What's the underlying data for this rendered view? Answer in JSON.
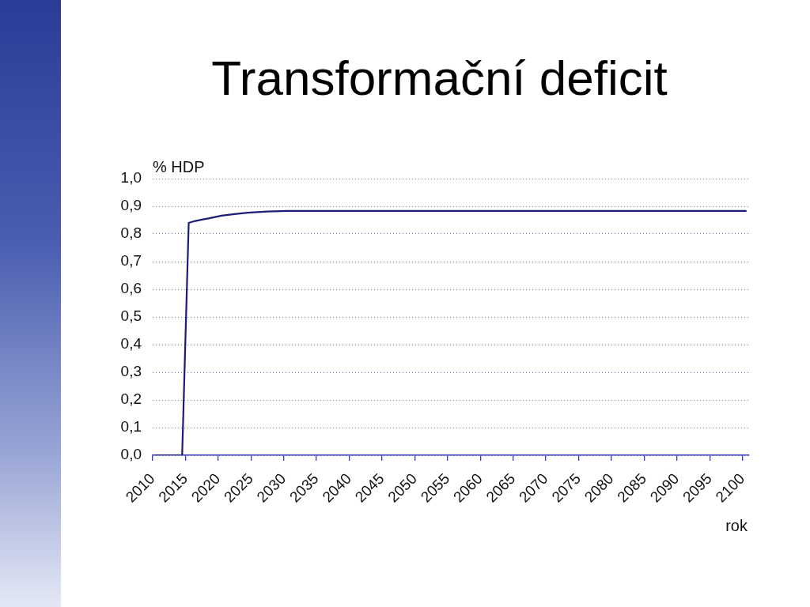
{
  "chart_data": {
    "type": "line",
    "title": "Transformační deficit",
    "xlabel": "rok",
    "ylabel": "% HDP",
    "x": [
      2010.5,
      2014.5,
      2015.5,
      2016.5,
      2017.5,
      2018.5,
      2020.5,
      2022.5,
      2024.5,
      2027.5,
      2030.5,
      2100.5
    ],
    "values": [
      0,
      0,
      0.84,
      0.847,
      0.852,
      0.856,
      0.866,
      0.872,
      0.877,
      0.881,
      0.883,
      0.883
    ],
    "color": "#1c1c78",
    "marker": "none",
    "line_style": "solid",
    "grid": "y",
    "xlim": [
      2010,
      2101
    ],
    "ylim": [
      0,
      1
    ],
    "xticks": [
      2010,
      2015,
      2020,
      2025,
      2030,
      2035,
      2040,
      2045,
      2050,
      2055,
      2060,
      2065,
      2070,
      2075,
      2080,
      2085,
      2090,
      2095,
      2100
    ],
    "yticks": [
      {
        "value": 0,
        "label": "0,0"
      },
      {
        "value": 0.1,
        "label": "0,1"
      },
      {
        "value": 0.2,
        "label": "0,2"
      },
      {
        "value": 0.3,
        "label": "0,3"
      },
      {
        "value": 0.4,
        "label": "0,4"
      },
      {
        "value": 0.5,
        "label": "0,5"
      },
      {
        "value": 0.6,
        "label": "0,6"
      },
      {
        "value": 0.7,
        "label": "0,7"
      },
      {
        "value": 0.8,
        "label": "0,8"
      },
      {
        "value": 0.9,
        "label": "0,9"
      },
      {
        "value": 1,
        "label": "1,0"
      }
    ]
  }
}
